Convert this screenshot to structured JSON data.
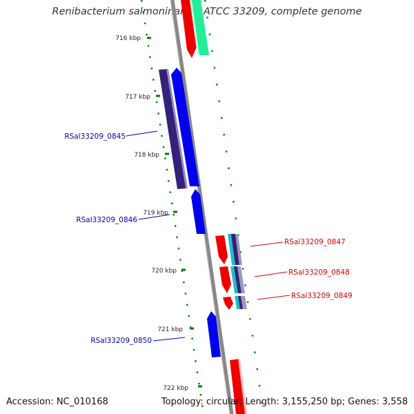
{
  "title": "Renibacterium salmoninarum ATCC 33209, complete genome",
  "footer": {
    "accession": "Accession: NC_010168",
    "topology": "Topology: circular; Length: 3,155,250 bp; Genes: 3,558"
  },
  "ticks": [
    "716 kbp",
    "717 kbp",
    "718 kbp",
    "719 kbp",
    "720 kbp",
    "721 kbp",
    "722 kbp"
  ],
  "gene_labels": [
    {
      "id": "RSal33209_0845",
      "color": "#0000aa"
    },
    {
      "id": "RSal33209_0846",
      "color": "#0000aa"
    },
    {
      "id": "RSal33209_0847",
      "color": "#dd0000"
    },
    {
      "id": "RSal33209_0848",
      "color": "#dd0000"
    },
    {
      "id": "RSal33209_0849",
      "color": "#dd0000"
    },
    {
      "id": "RSal33209_0850",
      "color": "#0000aa"
    }
  ],
  "colors": {
    "forward_cds": "#ee0000",
    "reverse_cds": "#0000ee",
    "backbone": "#888888",
    "tick_marks": "#007700",
    "gc_skew_dots": "#008800",
    "reverse_blast": "#332277",
    "forward_blast_green": "#22ee99",
    "forward_blast_cyan": "#22bbcc"
  }
}
